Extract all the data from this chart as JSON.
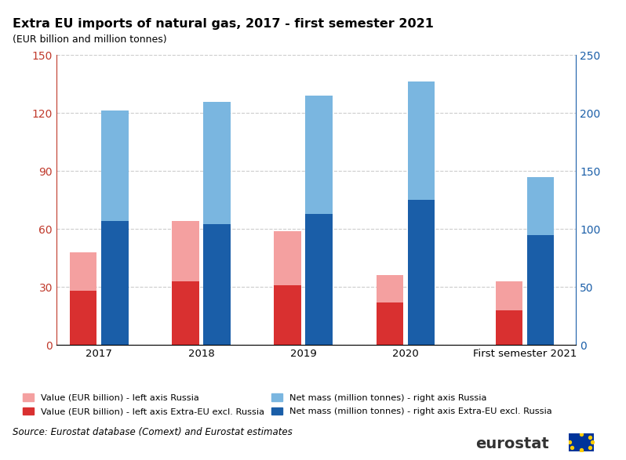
{
  "title": "Extra EU imports of natural gas, 2017 - first semester 2021",
  "subtitle": "(EUR billion and million tonnes)",
  "categories": [
    "2017",
    "2018",
    "2019",
    "2020",
    "First semester 2021"
  ],
  "value_russia_base": [
    28,
    33,
    31,
    22,
    18
  ],
  "value_russia_top": [
    20,
    31,
    28,
    14,
    15
  ],
  "net_mass_extra_dark": [
    107,
    104,
    113,
    125,
    95
  ],
  "net_mass_russia_light": [
    95,
    106,
    102,
    102,
    50
  ],
  "left_ylim": [
    0,
    150
  ],
  "right_ylim": [
    0,
    250
  ],
  "left_yticks": [
    0,
    30,
    60,
    90,
    120,
    150
  ],
  "right_yticks": [
    0,
    50,
    100,
    150,
    200,
    250
  ],
  "color_russia_light": "#f4a0a0",
  "color_russia_dark": "#d93030",
  "color_mass_light": "#7ab6e0",
  "color_mass_dark": "#1a5ea8",
  "left_axis_color": "#c0392b",
  "right_axis_color": "#1a5ea8",
  "source": "Source: Eurostat database (Comext) and Eurostat estimates",
  "legend_labels": [
    "Value (EUR billion) - left axis Russia",
    "Value (EUR billion) - left axis Extra-EU excl. Russia",
    "Net mass (million tonnes) - right axis Russia",
    "Net mass (million tonnes) - right axis Extra-EU excl. Russia"
  ],
  "legend_colors": [
    "#f4a0a0",
    "#d93030",
    "#7ab6e0",
    "#1a5ea8"
  ]
}
